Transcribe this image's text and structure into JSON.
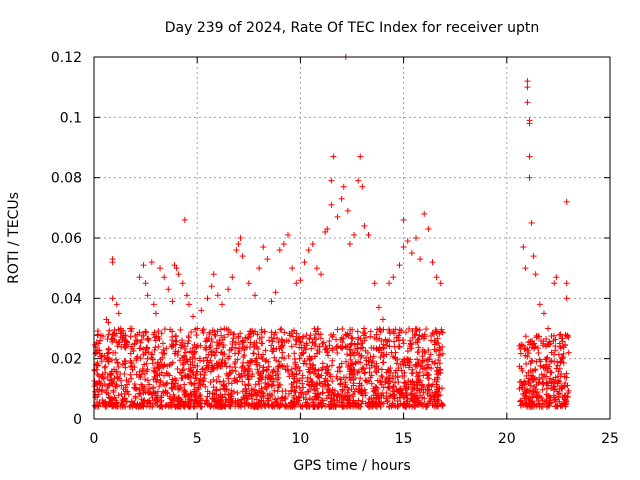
{
  "chart_data": {
    "type": "scatter",
    "title": "Day 239 of 2024, Rate Of TEC Index for receiver uptn",
    "xlabel": "GPS time / hours",
    "ylabel": "ROTI / TECUs",
    "xlim": [
      0,
      25
    ],
    "ylim": [
      0,
      0.12
    ],
    "x_ticks": [
      0,
      5,
      10,
      15,
      20,
      25
    ],
    "y_ticks": [
      0,
      0.02,
      0.04,
      0.06,
      0.08,
      0.1,
      0.12
    ],
    "x_tick_labels": [
      "0",
      "5",
      "10",
      "15",
      "20",
      "25"
    ],
    "y_tick_labels": [
      "0",
      "0.02",
      "0.04",
      "0.06",
      "0.08",
      "0.1",
      "0.12"
    ],
    "grid": true,
    "marker": "plus",
    "color": "#ff0000",
    "series": [
      {
        "values": [
          [
            0.1,
            0.022
          ],
          [
            0.2,
            0.028
          ],
          [
            0.4,
            0.021
          ],
          [
            0.6,
            0.033
          ],
          [
            0.7,
            0.032
          ],
          [
            0.9,
            0.053
          ],
          [
            0.9,
            0.052
          ],
          [
            0.9,
            0.04
          ],
          [
            1.1,
            0.038
          ],
          [
            1.2,
            0.035
          ],
          [
            1.3,
            0.03
          ],
          [
            1.5,
            0.026
          ],
          [
            1.8,
            0.024
          ],
          [
            2.1,
            0.028
          ],
          [
            2.2,
            0.047
          ],
          [
            2.4,
            0.051
          ],
          [
            2.5,
            0.045
          ],
          [
            2.6,
            0.041
          ],
          [
            2.8,
            0.052
          ],
          [
            2.9,
            0.038
          ],
          [
            3.0,
            0.035
          ],
          [
            3.2,
            0.05
          ],
          [
            3.4,
            0.047
          ],
          [
            3.6,
            0.043
          ],
          [
            3.8,
            0.039
          ],
          [
            3.9,
            0.051
          ],
          [
            4.0,
            0.05
          ],
          [
            4.1,
            0.048
          ],
          [
            4.3,
            0.045
          ],
          [
            4.4,
            0.066
          ],
          [
            4.5,
            0.041
          ],
          [
            4.6,
            0.038
          ],
          [
            4.8,
            0.034
          ],
          [
            5.0,
            0.03
          ],
          [
            5.2,
            0.036
          ],
          [
            5.5,
            0.04
          ],
          [
            5.7,
            0.044
          ],
          [
            5.8,
            0.048
          ],
          [
            6.0,
            0.041
          ],
          [
            6.2,
            0.038
          ],
          [
            6.5,
            0.043
          ],
          [
            6.7,
            0.047
          ],
          [
            6.9,
            0.056
          ],
          [
            7.0,
            0.058
          ],
          [
            7.1,
            0.06
          ],
          [
            7.2,
            0.054
          ],
          [
            7.5,
            0.045
          ],
          [
            7.8,
            0.041
          ],
          [
            8.0,
            0.05
          ],
          [
            8.2,
            0.057
          ],
          [
            8.4,
            0.053
          ],
          [
            8.6,
            0.039
          ],
          [
            8.8,
            0.042
          ],
          [
            9.0,
            0.056
          ],
          [
            9.2,
            0.058
          ],
          [
            9.4,
            0.061
          ],
          [
            9.6,
            0.05
          ],
          [
            9.8,
            0.045
          ],
          [
            10.0,
            0.046
          ],
          [
            10.2,
            0.052
          ],
          [
            10.4,
            0.056
          ],
          [
            10.6,
            0.058
          ],
          [
            10.8,
            0.05
          ],
          [
            11.0,
            0.048
          ],
          [
            11.2,
            0.062
          ],
          [
            11.3,
            0.063
          ],
          [
            11.5,
            0.071
          ],
          [
            11.5,
            0.079
          ],
          [
            11.6,
            0.087
          ],
          [
            11.8,
            0.067
          ],
          [
            12.0,
            0.073
          ],
          [
            12.1,
            0.077
          ],
          [
            12.2,
            0.12
          ],
          [
            12.3,
            0.069
          ],
          [
            12.4,
            0.058
          ],
          [
            12.6,
            0.061
          ],
          [
            12.8,
            0.079
          ],
          [
            12.9,
            0.087
          ],
          [
            13.0,
            0.077
          ],
          [
            13.1,
            0.064
          ],
          [
            13.3,
            0.061
          ],
          [
            13.6,
            0.045
          ],
          [
            13.8,
            0.037
          ],
          [
            14.0,
            0.033
          ],
          [
            14.3,
            0.045
          ],
          [
            14.5,
            0.047
          ],
          [
            14.8,
            0.051
          ],
          [
            15.0,
            0.057
          ],
          [
            15.0,
            0.066
          ],
          [
            15.2,
            0.059
          ],
          [
            15.4,
            0.055
          ],
          [
            15.6,
            0.06
          ],
          [
            15.8,
            0.053
          ],
          [
            16.0,
            0.068
          ],
          [
            16.2,
            0.063
          ],
          [
            16.4,
            0.052
          ],
          [
            16.6,
            0.047
          ],
          [
            16.8,
            0.045
          ],
          [
            20.8,
            0.057
          ],
          [
            20.9,
            0.05
          ],
          [
            21.0,
            0.112
          ],
          [
            21.0,
            0.11
          ],
          [
            21.0,
            0.105
          ],
          [
            21.1,
            0.099
          ],
          [
            21.1,
            0.098
          ],
          [
            21.1,
            0.087
          ],
          [
            21.1,
            0.08
          ],
          [
            21.2,
            0.065
          ],
          [
            21.3,
            0.054
          ],
          [
            21.4,
            0.048
          ],
          [
            21.6,
            0.038
          ],
          [
            21.8,
            0.035
          ],
          [
            22.0,
            0.03
          ],
          [
            22.3,
            0.045
          ],
          [
            22.4,
            0.047
          ],
          [
            22.6,
            0.028
          ],
          [
            22.9,
            0.072
          ],
          [
            22.9,
            0.045
          ],
          [
            22.9,
            0.04
          ],
          [
            23.0,
            0.022
          ]
        ]
      }
    ],
    "dense_band": {
      "segments": [
        {
          "x_start": 0.0,
          "x_end": 16.9,
          "y_min": 0.004,
          "y_max": 0.03
        },
        {
          "x_start": 20.6,
          "x_end": 23.0,
          "y_min": 0.004,
          "y_max": 0.028
        }
      ]
    }
  }
}
